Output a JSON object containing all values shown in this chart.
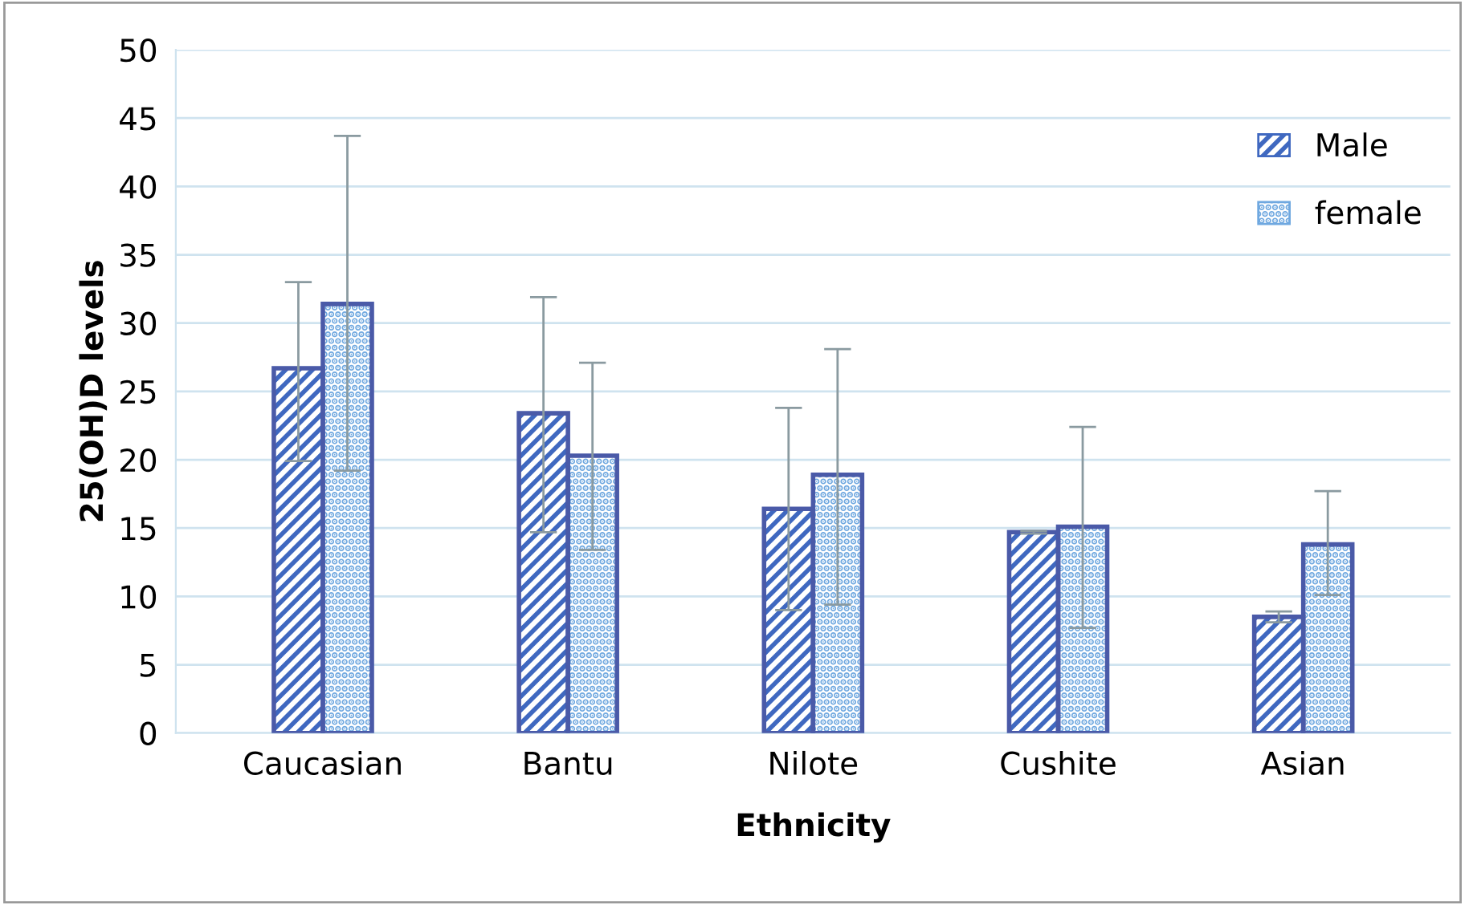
{
  "chart_data": {
    "type": "bar",
    "xlabel": "Ethnicity",
    "ylabel": "25(OH)D levels",
    "categories": [
      "Caucasian",
      "Bantu",
      "Nilote",
      "Cushite",
      "Asian"
    ],
    "series": [
      {
        "name": "Male",
        "color": "#3f68c0",
        "values": [
          26.7,
          23.4,
          16.4,
          14.7,
          8.5
        ],
        "errors": [
          [
            19.9,
            33.0
          ],
          [
            14.7,
            31.9
          ],
          [
            9.0,
            23.8
          ],
          [
            14.6,
            14.8
          ],
          [
            8.1,
            8.9
          ]
        ]
      },
      {
        "name": "female",
        "color": "#6fa8e0",
        "values": [
          31.4,
          20.3,
          18.9,
          15.1,
          13.8
        ],
        "errors": [
          [
            19.2,
            43.7
          ],
          [
            13.4,
            27.1
          ],
          [
            9.4,
            28.1
          ],
          [
            7.7,
            22.4
          ],
          [
            10.1,
            17.7
          ]
        ]
      }
    ],
    "ylim": [
      0,
      50
    ],
    "yticks": [
      0,
      5,
      10,
      15,
      20,
      25,
      30,
      35,
      40,
      45,
      50
    ],
    "grid": "y",
    "legend": "top right"
  }
}
